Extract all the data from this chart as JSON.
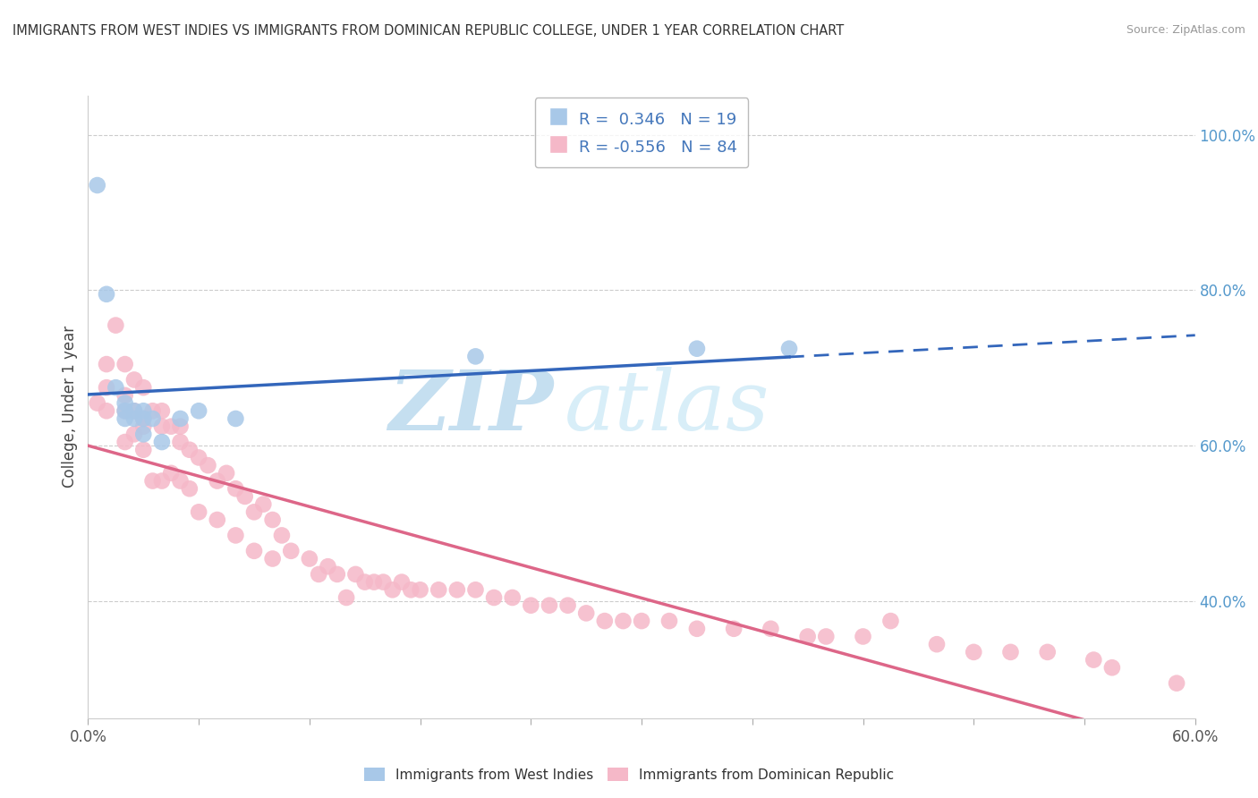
{
  "title": "IMMIGRANTS FROM WEST INDIES VS IMMIGRANTS FROM DOMINICAN REPUBLIC COLLEGE, UNDER 1 YEAR CORRELATION CHART",
  "source": "Source: ZipAtlas.com",
  "ylabel": "College, Under 1 year",
  "xmin": 0.0,
  "xmax": 0.6,
  "ymin": 0.25,
  "ymax": 1.05,
  "right_yticks": [
    0.4,
    0.6,
    0.8,
    1.0
  ],
  "right_yticklabels": [
    "40.0%",
    "60.0%",
    "80.0%",
    "100.0%"
  ],
  "legend_R1": "R =  0.346",
  "legend_N1": "N = 19",
  "legend_R2": "R = -0.556",
  "legend_N2": "N = 84",
  "blue_color": "#a8c8e8",
  "pink_color": "#f5b8c8",
  "blue_line_color": "#3366bb",
  "pink_line_color": "#dd6688",
  "watermark_zip": "ZIP",
  "watermark_atlas": "atlas",
  "blue_scatter_x": [
    0.005,
    0.01,
    0.015,
    0.02,
    0.02,
    0.02,
    0.025,
    0.025,
    0.03,
    0.03,
    0.03,
    0.035,
    0.04,
    0.05,
    0.06,
    0.08,
    0.21,
    0.33,
    0.38
  ],
  "blue_scatter_y": [
    0.935,
    0.795,
    0.675,
    0.655,
    0.645,
    0.635,
    0.635,
    0.645,
    0.645,
    0.635,
    0.615,
    0.635,
    0.605,
    0.635,
    0.645,
    0.635,
    0.715,
    0.725,
    0.725
  ],
  "pink_scatter_x": [
    0.005,
    0.01,
    0.01,
    0.01,
    0.015,
    0.02,
    0.02,
    0.02,
    0.02,
    0.025,
    0.025,
    0.025,
    0.03,
    0.03,
    0.03,
    0.03,
    0.035,
    0.035,
    0.04,
    0.04,
    0.04,
    0.045,
    0.045,
    0.05,
    0.05,
    0.05,
    0.055,
    0.055,
    0.06,
    0.06,
    0.065,
    0.07,
    0.07,
    0.075,
    0.08,
    0.08,
    0.085,
    0.09,
    0.09,
    0.095,
    0.1,
    0.1,
    0.105,
    0.11,
    0.12,
    0.125,
    0.13,
    0.135,
    0.14,
    0.145,
    0.15,
    0.155,
    0.16,
    0.165,
    0.17,
    0.175,
    0.18,
    0.19,
    0.2,
    0.21,
    0.22,
    0.23,
    0.24,
    0.25,
    0.26,
    0.27,
    0.28,
    0.29,
    0.3,
    0.315,
    0.33,
    0.35,
    0.37,
    0.39,
    0.4,
    0.42,
    0.435,
    0.46,
    0.48,
    0.5,
    0.52,
    0.545,
    0.555,
    0.59
  ],
  "pink_scatter_y": [
    0.655,
    0.705,
    0.675,
    0.645,
    0.755,
    0.705,
    0.665,
    0.645,
    0.605,
    0.685,
    0.645,
    0.615,
    0.675,
    0.635,
    0.625,
    0.595,
    0.645,
    0.555,
    0.645,
    0.625,
    0.555,
    0.625,
    0.565,
    0.625,
    0.605,
    0.555,
    0.595,
    0.545,
    0.585,
    0.515,
    0.575,
    0.555,
    0.505,
    0.565,
    0.545,
    0.485,
    0.535,
    0.515,
    0.465,
    0.525,
    0.505,
    0.455,
    0.485,
    0.465,
    0.455,
    0.435,
    0.445,
    0.435,
    0.405,
    0.435,
    0.425,
    0.425,
    0.425,
    0.415,
    0.425,
    0.415,
    0.415,
    0.415,
    0.415,
    0.415,
    0.405,
    0.405,
    0.395,
    0.395,
    0.395,
    0.385,
    0.375,
    0.375,
    0.375,
    0.375,
    0.365,
    0.365,
    0.365,
    0.355,
    0.355,
    0.355,
    0.375,
    0.345,
    0.335,
    0.335,
    0.335,
    0.325,
    0.315,
    0.295
  ]
}
